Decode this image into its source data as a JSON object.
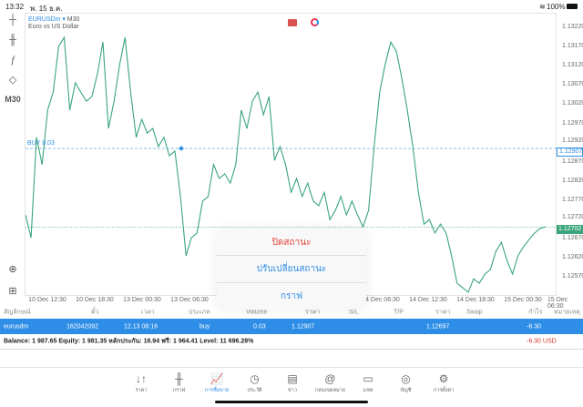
{
  "status": {
    "time": "13:32",
    "date": "พ. 15 ธ.ค.",
    "battery": "100%"
  },
  "chart": {
    "symbol": "EURUSDm",
    "timeframe": "M30",
    "description": "Euro vs US Dollar",
    "buy_label": "BUY 0.03",
    "buy_price": "1.12907",
    "current_price": "1.12702",
    "line_color": "#3aa57a",
    "y_ticks": [
      "1.13220",
      "1.13170",
      "1.13120",
      "1.13070",
      "1.13020",
      "1.12970",
      "1.12920",
      "1.12870",
      "1.12820",
      "1.12770",
      "1.12720",
      "1.12670",
      "1.12620",
      "1.12570"
    ],
    "x_ticks": [
      "10 Dec 12:30",
      "10 Dec 18:30",
      "13 Dec 00:30",
      "13 Dec 06:30",
      "14 Dec 06:30",
      "14 Dec 12:30",
      "14 Dec 18:30",
      "15 Dec 00:30",
      "15 Dec 06:30"
    ],
    "prices": [
      1.12734,
      1.12675,
      1.12936,
      1.12865,
      1.13007,
      1.13054,
      1.13173,
      1.13196,
      1.13007,
      1.13078,
      1.13054,
      1.1303,
      1.13042,
      1.13102,
      1.13184,
      1.12959,
      1.1303,
      1.13125,
      1.13196,
      1.13054,
      1.12936,
      1.12983,
      1.12947,
      1.12959,
      1.12912,
      1.12936,
      1.12888,
      1.129,
      1.12782,
      1.12628,
      1.12675,
      1.12687,
      1.1277,
      1.12782,
      1.12865,
      1.12829,
      1.12841,
      1.12817,
      1.12865,
      1.13007,
      1.12959,
      1.1303,
      1.13054,
      1.12995,
      1.13042,
      1.12876,
      1.12912,
      1.12865,
      1.12793,
      1.12829,
      1.12782,
      1.12817,
      1.1277,
      1.12758,
      1.12793,
      1.12722,
      1.12746,
      1.12782,
      1.12734,
      1.1277,
      1.12734,
      1.12703,
      1.12746,
      1.12912,
      1.13054,
      1.13125,
      1.13184,
      1.13161,
      1.1309,
      1.13007,
      1.12912,
      1.12793,
      1.1271,
      1.12722,
      1.12687,
      1.1271,
      1.12687,
      1.12628,
      1.12556,
      1.12545,
      1.12533,
      1.12568,
      1.12556,
      1.1258,
      1.12592,
      1.12639,
      1.12663,
      1.12616,
      1.1258,
      1.12628,
      1.12651,
      1.1267,
      1.12687,
      1.12699,
      1.12703
    ]
  },
  "left_tools": {
    "timeframe": "M30"
  },
  "popup": {
    "close": "ปิดสถานะ",
    "modify": "ปรับเปลี่ยนสถานะ",
    "chart": "กราฟ"
  },
  "table": {
    "headers": [
      "สัญลักษณ์",
      "ตั๋ว",
      "เวลา",
      "ประเภท",
      "Volume",
      "ราคา",
      "S/L",
      "T/P",
      "ราคา",
      "Swap",
      "กำไร",
      "หมายเหตุ"
    ],
    "row": {
      "symbol": "eurusdm",
      "ticket": "162042092",
      "time": "12.13 08:16",
      "type": "buy",
      "volume": "0.03",
      "open_price": "1.12907",
      "current_price": "1.12697",
      "profit": "-6.30"
    },
    "balance": "Balance: 1 987.65 Equity: 1 981.35 หลักประกัน: 16.94 ฟรี: 1 964.41 Level: 11 696.28%",
    "total": "-6.30  USD"
  },
  "nav": [
    {
      "label": "ราคา",
      "icon": "↓↑"
    },
    {
      "label": "กราฟ",
      "icon": "╫"
    },
    {
      "label": "การซื้อขาย",
      "icon": "📈"
    },
    {
      "label": "ประวัติ",
      "icon": "◷"
    },
    {
      "label": "ข่าว",
      "icon": "▤"
    },
    {
      "label": "กล่องจดหมาย",
      "icon": "@"
    },
    {
      "label": "แชท",
      "icon": "▭"
    },
    {
      "label": "บัญชี",
      "icon": "◎"
    },
    {
      "label": "การตั้งค่า",
      "icon": "⚙"
    }
  ],
  "accent": "#2e8de6"
}
